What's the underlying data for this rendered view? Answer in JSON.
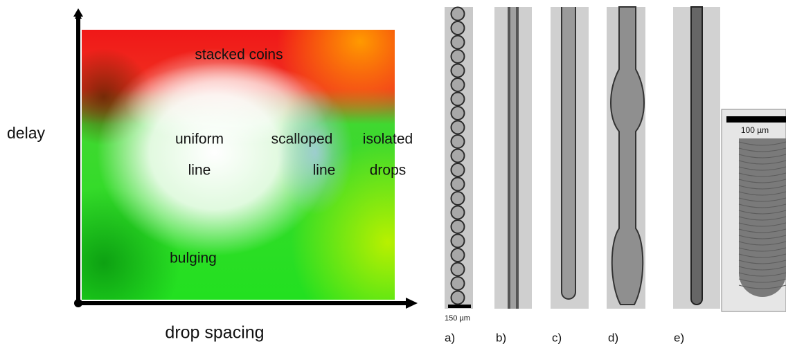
{
  "diagram": {
    "y_axis_label": "delay",
    "x_axis_label": "drop spacing",
    "regions": [
      {
        "lines": [
          "stacked coins"
        ]
      },
      {
        "lines": [
          "uniform",
          "line"
        ]
      },
      {
        "lines": [
          "scalloped",
          "line"
        ]
      },
      {
        "lines": [
          "isolated",
          "drops"
        ]
      },
      {
        "lines": [
          "bulging"
        ]
      }
    ]
  },
  "panels": {
    "labels": [
      "a)",
      "b)",
      "c)",
      "d)",
      "e)"
    ],
    "scale_bar_a": "150 µm",
    "scale_bar_inset": "100 µm"
  }
}
